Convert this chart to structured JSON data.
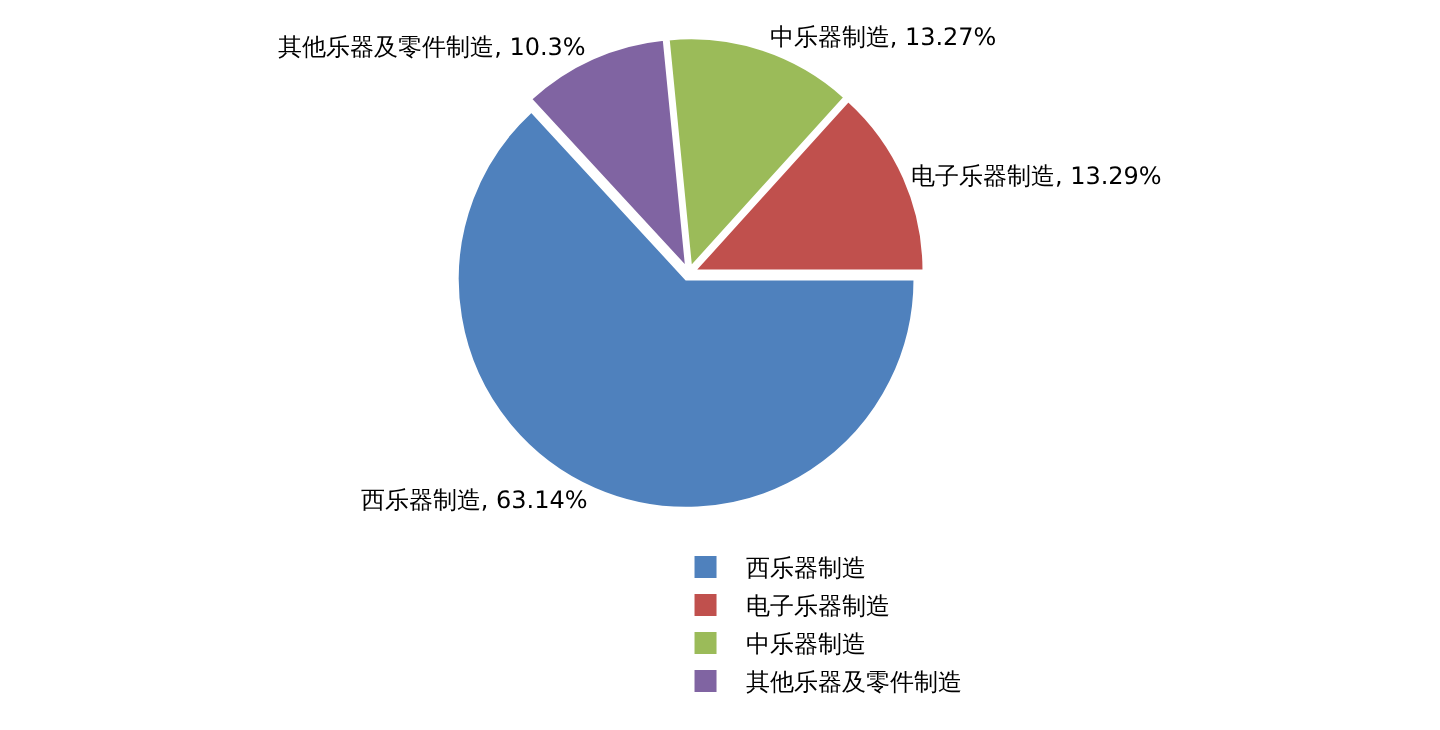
{
  "chart_data": {
    "type": "pie",
    "categories": [
      "西乐器制造",
      "电子乐器制造",
      "中乐器制造",
      "其他乐器及零件制造"
    ],
    "values": [
      63.14,
      13.29,
      13.27,
      10.3
    ],
    "colors": [
      "#4f81bd",
      "#c0504d",
      "#9bbb59",
      "#8064a2"
    ],
    "value_labels": [
      "西乐器制造, 63.14%",
      "电子乐器制造, 13.29%",
      "中乐器制造, 13.27%",
      "其他乐器及零件制造, 10.3%"
    ],
    "legend": "bottom"
  }
}
